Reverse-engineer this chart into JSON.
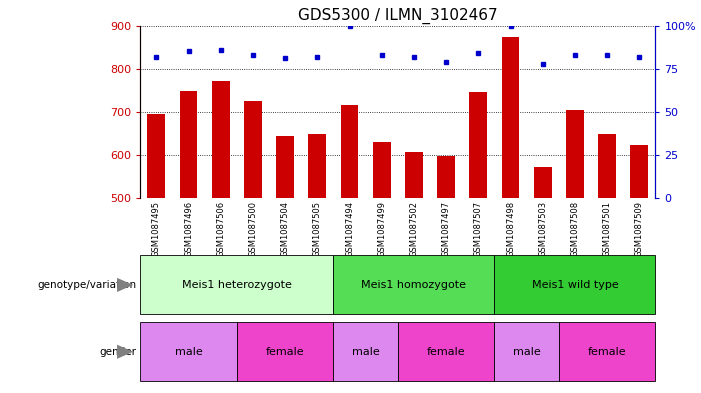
{
  "title": "GDS5300 / ILMN_3102467",
  "samples": [
    "GSM1087495",
    "GSM1087496",
    "GSM1087506",
    "GSM1087500",
    "GSM1087504",
    "GSM1087505",
    "GSM1087494",
    "GSM1087499",
    "GSM1087502",
    "GSM1087497",
    "GSM1087507",
    "GSM1087498",
    "GSM1087503",
    "GSM1087508",
    "GSM1087501",
    "GSM1087509"
  ],
  "counts": [
    695,
    748,
    772,
    725,
    645,
    648,
    716,
    630,
    607,
    598,
    747,
    873,
    572,
    705,
    648,
    624
  ],
  "percentiles": [
    82,
    85,
    86,
    83,
    81,
    82,
    100,
    83,
    82,
    79,
    84,
    100,
    78,
    83,
    83,
    82
  ],
  "ylim_left": [
    500,
    900
  ],
  "ylim_right": [
    0,
    100
  ],
  "yticks_left": [
    500,
    600,
    700,
    800,
    900
  ],
  "yticks_right": [
    0,
    25,
    50,
    75,
    100
  ],
  "bar_color": "#cc0000",
  "dot_color": "#0000cc",
  "grid_color": "#000000",
  "groups": [
    {
      "label": "Meis1 heterozygote",
      "start": 0,
      "end": 6,
      "color": "#ccffcc"
    },
    {
      "label": "Meis1 homozygote",
      "start": 6,
      "end": 11,
      "color": "#55dd55"
    },
    {
      "label": "Meis1 wild type",
      "start": 11,
      "end": 16,
      "color": "#33cc33"
    }
  ],
  "genders": [
    {
      "label": "male",
      "start": 0,
      "end": 3,
      "color": "#dd88ee"
    },
    {
      "label": "female",
      "start": 3,
      "end": 6,
      "color": "#ee44cc"
    },
    {
      "label": "male",
      "start": 6,
      "end": 8,
      "color": "#dd88ee"
    },
    {
      "label": "female",
      "start": 8,
      "end": 11,
      "color": "#ee44cc"
    },
    {
      "label": "male",
      "start": 11,
      "end": 13,
      "color": "#dd88ee"
    },
    {
      "label": "female",
      "start": 13,
      "end": 16,
      "color": "#ee44cc"
    }
  ],
  "legend_count_color": "#cc0000",
  "legend_dot_color": "#0000cc",
  "bg_color": "#ffffff",
  "title_fontsize": 11,
  "bar_fontsize": 7.5,
  "annotation_fontsize": 8
}
